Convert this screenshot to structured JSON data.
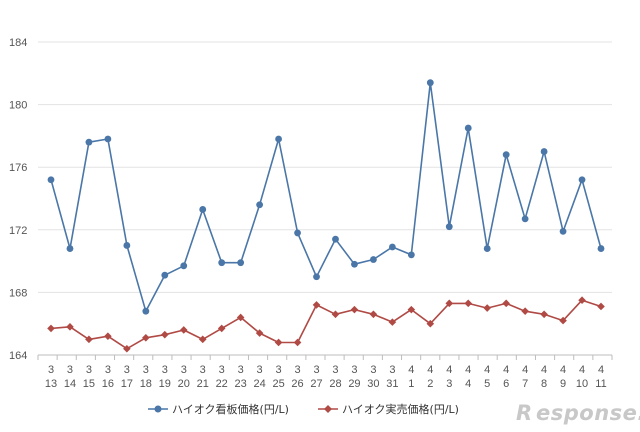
{
  "chart_data": {
    "type": "line",
    "categories": [
      [
        "3",
        "13"
      ],
      [
        "3",
        "14"
      ],
      [
        "3",
        "15"
      ],
      [
        "3",
        "16"
      ],
      [
        "3",
        "17"
      ],
      [
        "3",
        "18"
      ],
      [
        "3",
        "19"
      ],
      [
        "3",
        "20"
      ],
      [
        "3",
        "21"
      ],
      [
        "3",
        "22"
      ],
      [
        "3",
        "23"
      ],
      [
        "3",
        "24"
      ],
      [
        "3",
        "25"
      ],
      [
        "3",
        "26"
      ],
      [
        "3",
        "27"
      ],
      [
        "3",
        "28"
      ],
      [
        "3",
        "29"
      ],
      [
        "3",
        "30"
      ],
      [
        "3",
        "31"
      ],
      [
        "4",
        "1"
      ],
      [
        "4",
        "2"
      ],
      [
        "4",
        "3"
      ],
      [
        "4",
        "4"
      ],
      [
        "4",
        "5"
      ],
      [
        "4",
        "6"
      ],
      [
        "4",
        "7"
      ],
      [
        "4",
        "8"
      ],
      [
        "4",
        "9"
      ],
      [
        "4",
        "10"
      ],
      [
        "4",
        "11"
      ]
    ],
    "ylim": [
      164,
      184
    ],
    "yticks": [
      "164",
      "168",
      "172",
      "176",
      "180",
      "184"
    ],
    "grid": "horizontal",
    "legend_position": "bottom",
    "series": [
      {
        "name": "ハイオク看板価格(円/L)",
        "color": "#4a76a8",
        "marker": "circle",
        "values": [
          175.2,
          170.8,
          177.6,
          177.8,
          171.0,
          166.8,
          169.1,
          169.7,
          173.3,
          169.9,
          169.9,
          173.6,
          177.8,
          171.8,
          169.0,
          171.4,
          169.8,
          170.1,
          170.9,
          170.4,
          181.4,
          172.2,
          178.5,
          170.8,
          176.8,
          172.7,
          177.0,
          171.9,
          175.2,
          170.8
        ]
      },
      {
        "name": "ハイオク実売価格(円/L)",
        "color": "#b04a45",
        "marker": "diamond",
        "values": [
          165.7,
          165.8,
          165.0,
          165.2,
          164.4,
          165.1,
          165.3,
          165.6,
          165.0,
          165.7,
          166.4,
          165.4,
          164.8,
          164.8,
          167.2,
          166.6,
          166.9,
          166.6,
          166.1,
          166.9,
          166.0,
          167.3,
          167.3,
          167.0,
          167.3,
          166.8,
          166.6,
          166.2,
          167.5,
          167.1
        ]
      }
    ]
  },
  "watermark": {
    "mark": "R",
    "text": "esponse."
  }
}
